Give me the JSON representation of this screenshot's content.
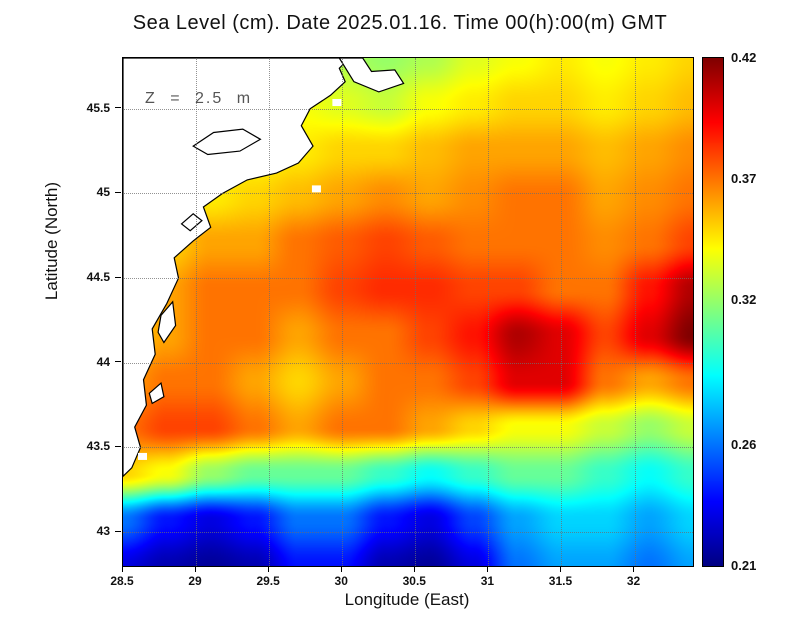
{
  "figure": {
    "title": "Sea Level (cm). Date 2025.01.16. Time 00(h):00(m) GMT"
  },
  "chart_data": {
    "type": "heatmap",
    "title": "Sea Level (cm). Date 2025.01.16. Time 00(h):00(m) GMT",
    "xlabel": "Longitude (East)",
    "ylabel": "Latitude (North)",
    "annotation": "Z = 2.5 m",
    "xlim": [
      28.5,
      32.4
    ],
    "ylim": [
      42.8,
      45.8
    ],
    "x_ticks": [
      28.5,
      29,
      29.5,
      30,
      30.5,
      31,
      31.5,
      32
    ],
    "y_ticks": [
      43,
      43.5,
      44,
      44.5,
      45,
      45.5
    ],
    "grid_on": true,
    "colorbar": {
      "min": 0.21,
      "max": 0.42,
      "labels": [
        0.42,
        0.37,
        0.32,
        0.26,
        0.21
      ],
      "position": "right"
    },
    "colormap": [
      [
        0.0,
        [
          0,
          0,
          131
        ]
      ],
      [
        0.125,
        [
          0,
          0,
          255
        ]
      ],
      [
        0.375,
        [
          0,
          255,
          255
        ]
      ],
      [
        0.625,
        [
          255,
          255,
          0
        ]
      ],
      [
        0.875,
        [
          255,
          0,
          0
        ]
      ],
      [
        1.0,
        [
          128,
          0,
          0
        ]
      ]
    ],
    "grid": {
      "x0": 28.5,
      "dx": 0.3,
      "y0": 42.8,
      "dy": 0.2727,
      "comment_order": "rows south to north, sea level value field (m est.)",
      "values": [
        [
          0.23,
          0.22,
          0.215,
          0.22,
          0.24,
          0.24,
          0.22,
          0.215,
          0.23,
          0.26,
          0.27,
          0.27,
          0.26,
          0.27
        ],
        [
          0.26,
          0.24,
          0.23,
          0.24,
          0.26,
          0.26,
          0.24,
          0.23,
          0.25,
          0.27,
          0.28,
          0.28,
          0.27,
          0.28
        ],
        [
          0.35,
          0.34,
          0.32,
          0.31,
          0.31,
          0.31,
          0.3,
          0.29,
          0.3,
          0.31,
          0.31,
          0.3,
          0.29,
          0.3
        ],
        [
          0.37,
          0.38,
          0.38,
          0.37,
          0.36,
          0.37,
          0.37,
          0.36,
          0.35,
          0.34,
          0.34,
          0.33,
          0.32,
          0.33
        ],
        [
          0.36,
          0.37,
          0.37,
          0.36,
          0.35,
          0.36,
          0.37,
          0.37,
          0.38,
          0.4,
          0.4,
          0.37,
          0.36,
          0.37
        ],
        [
          0.35,
          0.36,
          0.37,
          0.37,
          0.36,
          0.37,
          0.37,
          0.38,
          0.39,
          0.41,
          0.4,
          0.38,
          0.4,
          0.42
        ],
        [
          0.35,
          0.36,
          0.37,
          0.37,
          0.37,
          0.38,
          0.385,
          0.385,
          0.38,
          0.38,
          0.37,
          0.37,
          0.39,
          0.41
        ],
        [
          0.34,
          0.35,
          0.36,
          0.36,
          0.37,
          0.375,
          0.38,
          0.375,
          0.37,
          0.37,
          0.37,
          0.365,
          0.37,
          0.38
        ],
        [
          0.33,
          0.34,
          0.345,
          0.35,
          0.355,
          0.36,
          0.365,
          0.36,
          0.365,
          0.37,
          0.37,
          0.36,
          0.365,
          0.37
        ],
        [
          0.33,
          0.335,
          0.34,
          0.34,
          0.345,
          0.35,
          0.35,
          0.355,
          0.36,
          0.36,
          0.36,
          0.355,
          0.36,
          0.365
        ],
        [
          0.33,
          0.33,
          0.335,
          0.335,
          0.34,
          0.335,
          0.33,
          0.34,
          0.345,
          0.35,
          0.35,
          0.345,
          0.35,
          0.355
        ],
        [
          0.33,
          0.33,
          0.33,
          0.33,
          0.33,
          0.325,
          0.32,
          0.325,
          0.335,
          0.34,
          0.345,
          0.34,
          0.345,
          0.35
        ]
      ]
    },
    "coastline": {
      "land": [
        [
          28.5,
          43.33
        ],
        [
          28.56,
          43.38
        ],
        [
          28.62,
          43.5
        ],
        [
          28.58,
          43.62
        ],
        [
          28.66,
          43.75
        ],
        [
          28.64,
          43.9
        ],
        [
          28.72,
          44.05
        ],
        [
          28.7,
          44.2
        ],
        [
          28.8,
          44.35
        ],
        [
          28.88,
          44.5
        ],
        [
          28.85,
          44.62
        ],
        [
          28.98,
          44.72
        ],
        [
          29.1,
          44.8
        ],
        [
          29.05,
          44.92
        ],
        [
          29.18,
          45.0
        ],
        [
          29.35,
          45.08
        ],
        [
          29.55,
          45.12
        ],
        [
          29.7,
          45.18
        ],
        [
          29.8,
          45.28
        ],
        [
          29.72,
          45.4
        ],
        [
          29.78,
          45.5
        ],
        [
          29.92,
          45.58
        ],
        [
          30.02,
          45.66
        ],
        [
          29.98,
          45.74
        ],
        [
          30.05,
          45.8
        ],
        [
          28.5,
          45.8
        ]
      ],
      "spit": [
        [
          29.98,
          45.8
        ],
        [
          30.08,
          45.66
        ],
        [
          30.25,
          45.6
        ],
        [
          30.42,
          45.65
        ],
        [
          30.36,
          45.73
        ],
        [
          30.2,
          45.72
        ],
        [
          30.14,
          45.8
        ]
      ],
      "lakes": [
        [
          [
            28.98,
            45.28
          ],
          [
            29.12,
            45.36
          ],
          [
            29.32,
            45.38
          ],
          [
            29.44,
            45.32
          ],
          [
            29.3,
            45.25
          ],
          [
            29.08,
            45.23
          ]
        ],
        [
          [
            28.9,
            44.82
          ],
          [
            28.98,
            44.88
          ],
          [
            29.04,
            44.84
          ],
          [
            28.96,
            44.78
          ]
        ],
        [
          [
            28.78,
            44.12
          ],
          [
            28.86,
            44.22
          ],
          [
            28.84,
            44.36
          ],
          [
            28.76,
            44.28
          ],
          [
            28.74,
            44.18
          ]
        ],
        [
          [
            28.68,
            43.82
          ],
          [
            28.76,
            43.88
          ],
          [
            28.78,
            43.8
          ],
          [
            28.7,
            43.76
          ]
        ]
      ],
      "gaps": [
        [
          29.82,
          45.03
        ],
        [
          28.63,
          43.45
        ],
        [
          29.96,
          45.54
        ]
      ]
    }
  }
}
